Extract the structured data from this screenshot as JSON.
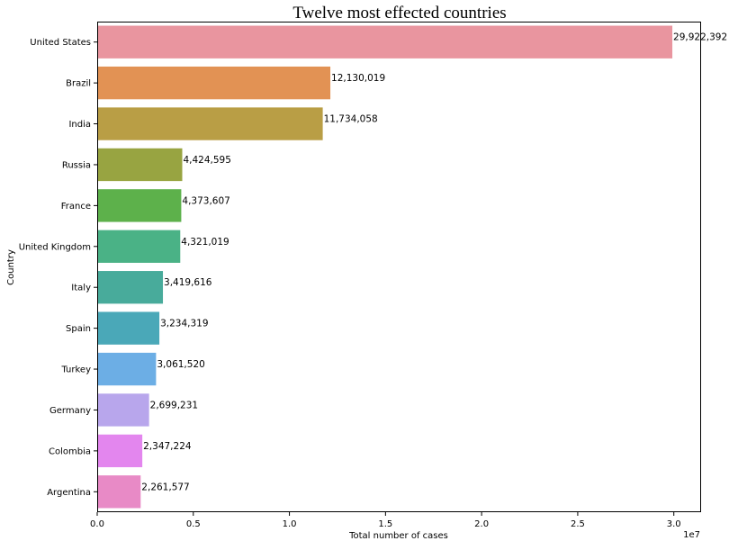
{
  "chart_data": {
    "type": "bar",
    "orientation": "horizontal",
    "title": "Twelve most effected countries",
    "xlabel": "Total number of cases",
    "ylabel": "Country",
    "x_offset_text": "1e7",
    "x_ticks": [
      0,
      5000000,
      10000000,
      15000000,
      20000000,
      25000000,
      30000000
    ],
    "x_tick_labels": [
      "0.0",
      "0.5",
      "1.0",
      "1.5",
      "2.0",
      "2.5",
      "3.0"
    ],
    "xlim": [
      0,
      31418511
    ],
    "grid": false,
    "legend": "none",
    "categories": [
      "United States",
      "Brazil",
      "India",
      "Russia",
      "France",
      "United Kingdom",
      "Italy",
      "Spain",
      "Turkey",
      "Germany",
      "Colombia",
      "Argentina"
    ],
    "values": [
      29922392,
      12130019,
      11734058,
      4424595,
      4373607,
      4321019,
      3419616,
      3234319,
      3061520,
      2699231,
      2347224,
      2261577
    ],
    "value_labels": [
      "29,922,392",
      "12,130,019",
      "11,734,058",
      "4,424,595",
      "4,373,607",
      "4,321,019",
      "3,419,616",
      "3,234,319",
      "3,061,520",
      "2,699,231",
      "2,347,224",
      "2,261,577"
    ],
    "colors": [
      "#e9959f",
      "#e29254",
      "#b99e45",
      "#98a441",
      "#5db14b",
      "#4ab286",
      "#48ab9b",
      "#4aa8b8",
      "#6caee5",
      "#b8a6ec",
      "#e386ee",
      "#e88ac6"
    ]
  }
}
